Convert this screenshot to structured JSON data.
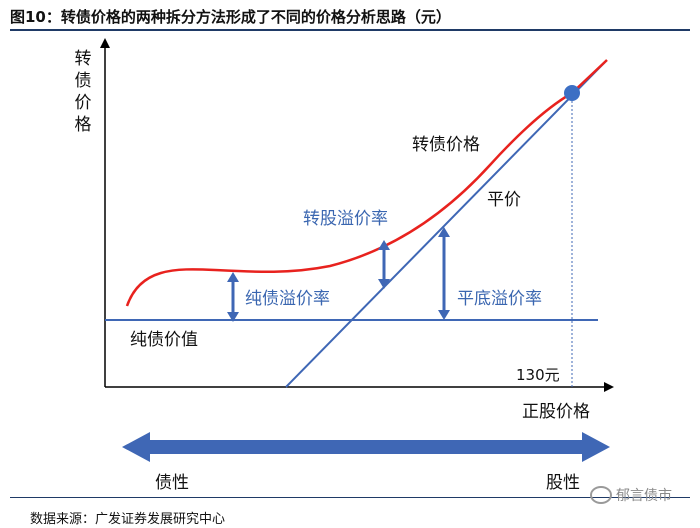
{
  "title": "图10：转债价格的两种拆分方法形成了不同的价格分析思路（元）",
  "source": "数据来源：广发证券发展研究中心",
  "watermark": "郁言债市",
  "labels": {
    "y_axis": "转债价格",
    "x_axis": "正股价格",
    "convertible_price": "转债价格",
    "parity": "平价",
    "conversion_premium": "转股溢价率",
    "pure_bond_premium": "纯债溢价率",
    "parity_floor_premium": "平底溢价率",
    "pure_bond_value": "纯债价值",
    "threshold": "130元",
    "bond_nature": "债性",
    "equity_nature": "股性"
  },
  "colors": {
    "curve": "#e8221e",
    "lines": "#3f67b5",
    "arrows": "#3f67b5",
    "text_blue": "#3a66b0",
    "dot": "#3c6fc4"
  }
}
